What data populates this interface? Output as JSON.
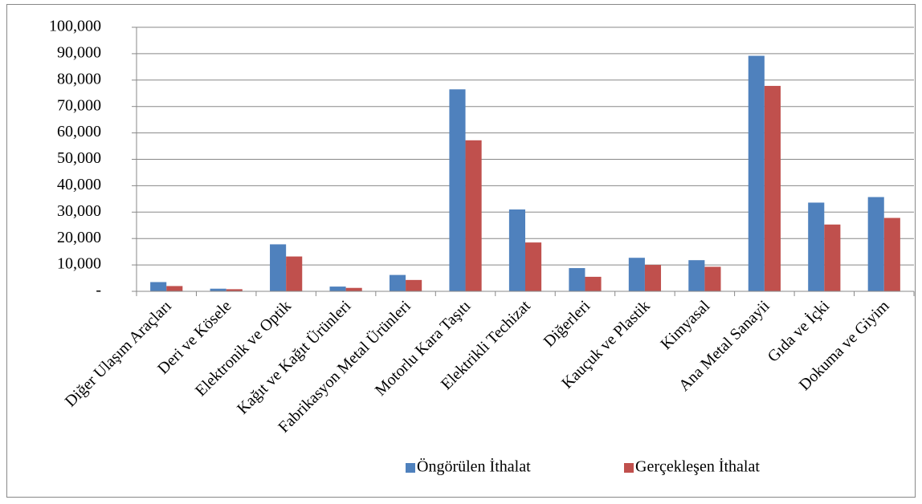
{
  "chart_data": {
    "type": "bar",
    "categories": [
      "Diğer Ulaşım Araçları",
      "Deri ve Kösele",
      "Elektronik ve Optik",
      "Kağıt ve Kağıt Ürünleri",
      "Fabrikasyon Metal Ürünleri",
      "Motorlu Kara Taşıtı",
      "Elektrikli Techizat",
      "Diğerleri",
      "Kauçuk ve Plastik",
      "Kimyasal",
      "Ana Metal Sanayii",
      "Gıda ve İçki",
      "Dokuma ve Giyim"
    ],
    "series": [
      {
        "name": "Öngörülen İthalat",
        "color": "#4f81bd",
        "values": [
          3500,
          1000,
          17800,
          1800,
          6200,
          76500,
          31000,
          8800,
          12700,
          11800,
          89200,
          33600,
          35700
        ]
      },
      {
        "name": "Gerçekleşen İthalat",
        "color": "#c0504d",
        "values": [
          2000,
          800,
          13200,
          1300,
          4300,
          57200,
          18500,
          5500,
          10000,
          9300,
          77800,
          25300,
          27800
        ]
      }
    ],
    "ylim": [
      0,
      100000
    ],
    "yticks": [
      {
        "value": 0,
        "label": "-"
      },
      {
        "value": 10000,
        "label": "10,000"
      },
      {
        "value": 20000,
        "label": "20,000"
      },
      {
        "value": 30000,
        "label": "30,000"
      },
      {
        "value": 40000,
        "label": "40,000"
      },
      {
        "value": 50000,
        "label": "50,000"
      },
      {
        "value": 60000,
        "label": "60,000"
      },
      {
        "value": 70000,
        "label": "70,000"
      },
      {
        "value": 80000,
        "label": "80,000"
      },
      {
        "value": 90000,
        "label": "90,000"
      },
      {
        "value": 100000,
        "label": "100,000"
      }
    ],
    "grid": true,
    "legend": "bottom"
  }
}
